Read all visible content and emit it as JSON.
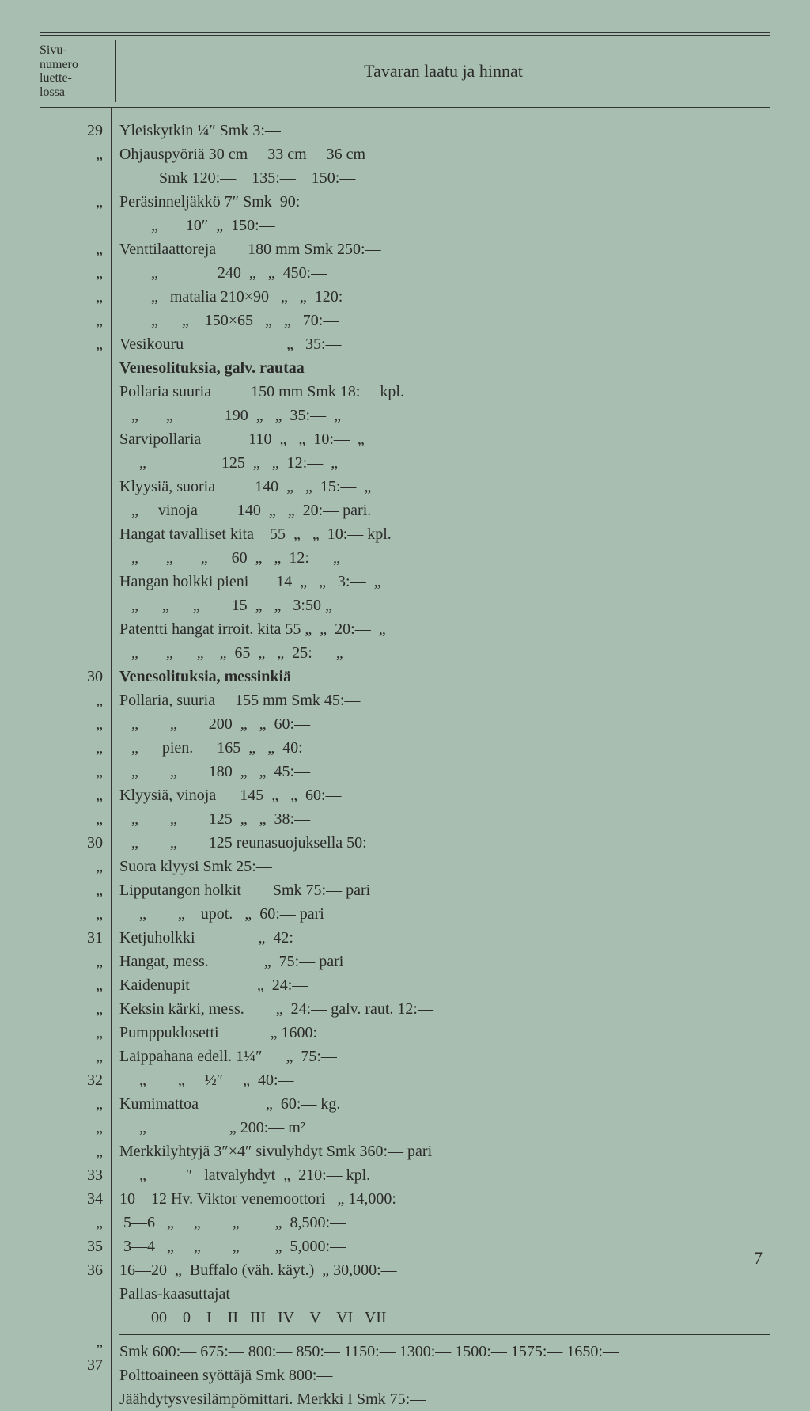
{
  "background_color": "#a8beb0",
  "text_color": "#2a2a2a",
  "font_family": "Times New Roman, serif",
  "header": {
    "sivu_label": "Sivu-\nnumero\nluette-\nlossa",
    "title": "Tavaran laatu ja hinnat"
  },
  "page_number": "7",
  "left_column": [
    "29",
    "„",
    "",
    "„",
    "",
    "„",
    "„",
    "„",
    "„",
    "„",
    "",
    "",
    "",
    "",
    "",
    "",
    "",
    "",
    "",
    "",
    "",
    "",
    "",
    "30",
    "„",
    "„",
    "„",
    "„",
    "„",
    "„",
    "30",
    "„",
    "„",
    "„",
    "31",
    "„",
    "„",
    "„",
    "„",
    "„",
    "32",
    "„",
    "„",
    "„",
    "33",
    "34",
    "„",
    "35",
    "36",
    "",
    "",
    "„",
    "37"
  ],
  "body_lines": [
    "Yleiskytkin ¼″ Smk 3:—",
    "Ohjauspyöriä 30 cm     33 cm     36 cm",
    "          Smk 120:—    135:—    150:—",
    "Peräsinneljäkkö 7″ Smk  90:—",
    "        „       10″  „  150:—",
    "Venttilaattoreja        180 mm Smk 250:—",
    "        „               240  „   „  450:—",
    "        „   matalia 210×90   „   „  120:—",
    "        „      „    150×65   „   „   70:—",
    "Vesikouru                          „   35:—",
    "Venesolituksia, galv. rautaa",
    "Pollaria suuria          150 mm Smk 18:— kpl.",
    "   „       „             190  „   „  35:—  „",
    "Sarvipollaria            110  „   „  10:—  „",
    "     „                   125  „   „  12:—  „",
    "Klyysiä, suoria          140  „   „  15:—  „",
    "   „     vinoja          140  „   „  20:— pari.",
    "Hangat tavalliset kita    55  „   „  10:— kpl.",
    "   „       „       „      60  „   „  12:—  „",
    "Hangan holkki pieni       14  „   „   3:—  „",
    "   „      „      „        15  „   „   3:50 „",
    "Patentti hangat irroit. kita 55 „  „  20:—  „",
    "   „       „      „    „  65  „   „  25:—  „",
    "Venesolituksia, messinkiä",
    "Pollaria, suuria     155 mm Smk 45:—",
    "   „        „        200  „   „  60:—",
    "   „      pien.      165  „   „  40:—",
    "   „        „        180  „   „  45:—",
    "Klyysiä, vinoja      145  „   „  60:—",
    "   „        „        125  „   „  38:—",
    "   „        „        125 reunasuojuksella 50:—",
    "Suora klyysi Smk 25:—",
    "Lipputangon holkit        Smk 75:— pari",
    "     „        „    upot.   „  60:— pari",
    "Ketjuholkki                „  42:—",
    "Hangat, mess.              „  75:— pari",
    "Kaidenupit                 „  24:—",
    "Keksin kärki, mess.        „  24:— galv. raut. 12:—",
    "Pumppuklosetti             „ 1600:—",
    "Laippahana edell. 1¼″      „  75:—",
    "     „        „     ½″     „  40:—",
    "Kumimattoa                 „  60:— kg.",
    "     „                     „ 200:— m²",
    "Merkkilyhtyjä 3″×4″ sivulyhdyt Smk 360:— pari",
    "     „          ″   latvalyhdyt  „  210:— kpl.",
    "10—12 Hv. Viktor venemoottori   „ 14,000:—",
    " 5—6   „     „        „         „  8,500:—",
    " 3—4   „     „        „         „  5,000:—",
    "16—20  „  Buffalo (väh. käyt.)  „ 30,000:—",
    "Pallas-kaasuttajat",
    "        00    0    I    II   III   IV    V    VI   VII",
    "Smk 600:— 675:— 800:— 850:— 1150:— 1300:— 1500:— 1575:— 1650:—",
    "Polttoaineen syöttäjä Smk 800:—",
    "Jäähdytysvesilämpömittari. Merkki I Smk 75:—"
  ],
  "bold_lines": [
    10,
    23
  ],
  "rule_before_lines": [
    51
  ]
}
